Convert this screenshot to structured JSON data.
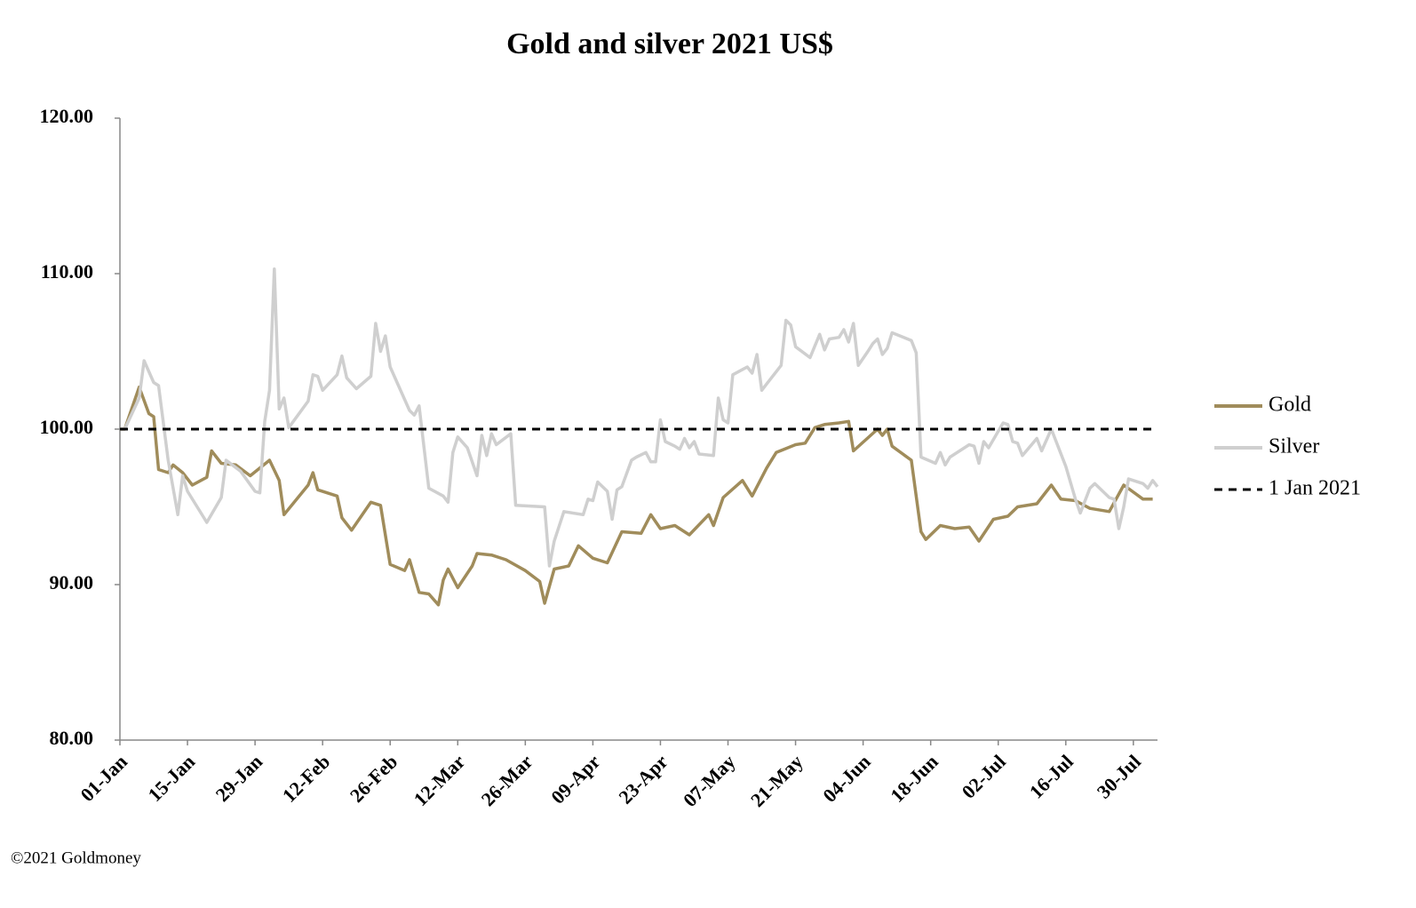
{
  "chart_data": {
    "type": "line",
    "title": "Gold and silver 2021  US$",
    "footer": "©2021 Goldmoney",
    "xlim": [
      "01-Jan",
      "04-Aug"
    ],
    "xticks": [
      "01-Jan",
      "15-Jan",
      "29-Jan",
      "12-Feb",
      "26-Feb",
      "12-Mar",
      "26-Mar",
      "09-Apr",
      "23-Apr",
      "07-May",
      "21-May",
      "04-Jun",
      "18-Jun",
      "02-Jul",
      "16-Jul",
      "30-Jul"
    ],
    "ylim": [
      80,
      120
    ],
    "yticks": [
      {
        "value": 80,
        "label": "80.00"
      },
      {
        "value": 90,
        "label": "90.00"
      },
      {
        "value": 100,
        "label": "100.00"
      },
      {
        "value": 110,
        "label": "110.00"
      },
      {
        "value": 120,
        "label": "120.00"
      }
    ],
    "series": [
      {
        "name": "Gold",
        "color": "#a08c5b",
        "x": [
          "01-Jan",
          "02-Jan",
          "05-Jan",
          "07-Jan",
          "08-Jan",
          "09-Jan",
          "11-Jan",
          "12-Jan",
          "14-Jan",
          "16-Jan",
          "19-Jan",
          "20-Jan",
          "22-Jan",
          "25-Jan",
          "28-Jan",
          "01-Feb",
          "03-Feb",
          "04-Feb",
          "09-Feb",
          "10-Feb",
          "11-Feb",
          "15-Feb",
          "16-Feb",
          "18-Feb",
          "22-Feb",
          "24-Feb",
          "26-Feb",
          "01-Mar",
          "02-Mar",
          "04-Mar",
          "06-Mar",
          "08-Mar",
          "09-Mar",
          "10-Mar",
          "12-Mar",
          "15-Mar",
          "16-Mar",
          "19-Mar",
          "22-Mar",
          "26-Mar",
          "29-Mar",
          "30-Mar",
          "01-Apr",
          "04-Apr",
          "06-Apr",
          "09-Apr",
          "12-Apr",
          "15-Apr",
          "19-Apr",
          "21-Apr",
          "23-Apr",
          "26-Apr",
          "29-Apr",
          "03-May",
          "04-May",
          "06-May",
          "10-May",
          "12-May",
          "15-May",
          "17-May",
          "21-May",
          "23-May",
          "25-May",
          "27-May",
          "30-May",
          "01-Jun",
          "02-Jun",
          "07-Jun",
          "08-Jun",
          "09-Jun",
          "10-Jun",
          "14-Jun",
          "16-Jun",
          "17-Jun",
          "20-Jun",
          "23-Jun",
          "26-Jun",
          "28-Jun",
          "01-Jul",
          "04-Jul",
          "06-Jul",
          "10-Jul",
          "13-Jul",
          "15-Jul",
          "18-Jul",
          "21-Jul",
          "25-Jul",
          "28-Jul",
          "01-Aug",
          "03-Aug"
        ],
        "values": [
          100,
          100.0,
          102.7,
          101,
          100.8,
          97.4,
          97.2,
          97.7,
          97.2,
          96.4,
          96.9,
          98.6,
          97.8,
          97.7,
          97.0,
          98.0,
          96.7,
          94.5,
          96.4,
          97.2,
          96.1,
          95.7,
          94.3,
          93.5,
          95.3,
          95.1,
          91.3,
          90.9,
          91.6,
          89.5,
          89.4,
          88.7,
          90.3,
          91.0,
          89.8,
          91.2,
          92.0,
          91.9,
          91.6,
          90.9,
          90.2,
          88.8,
          91.0,
          91.2,
          92.5,
          91.7,
          91.4,
          93.4,
          93.3,
          94.5,
          93.6,
          93.8,
          93.2,
          94.5,
          93.8,
          95.6,
          96.7,
          95.7,
          97.5,
          98.5,
          99.0,
          99.1,
          100.1,
          100.3,
          100.4,
          100.5,
          98.6,
          100.0,
          99.6,
          100.0,
          98.9,
          98.0,
          93.4,
          92.9,
          93.8,
          93.6,
          93.7,
          92.8,
          94.2,
          94.4,
          95.0,
          95.2,
          96.4,
          95.5,
          95.4,
          94.9,
          94.7,
          96.4,
          95.5,
          95.5
        ]
      },
      {
        "name": "Silver",
        "color": "#cfcfcf",
        "x": [
          "01-Jan",
          "02-Jan",
          "05-Jan",
          "06-Jan",
          "08-Jan",
          "09-Jan",
          "11-Jan",
          "13-Jan",
          "14-Jan",
          "15-Jan",
          "19-Jan",
          "22-Jan",
          "23-Jan",
          "26-Jan",
          "29-Jan",
          "30-Jan",
          "31-Jan",
          "01-Feb",
          "02-Feb",
          "03-Feb",
          "04-Feb",
          "05-Feb",
          "09-Feb",
          "10-Feb",
          "11-Feb",
          "12-Feb",
          "15-Feb",
          "16-Feb",
          "17-Feb",
          "19-Feb",
          "22-Feb",
          "23-Feb",
          "24-Feb",
          "25-Feb",
          "26-Feb",
          "02-Mar",
          "03-Mar",
          "04-Mar",
          "06-Mar",
          "09-Mar",
          "10-Mar",
          "11-Mar",
          "12-Mar",
          "14-Mar",
          "16-Mar",
          "17-Mar",
          "18-Mar",
          "19-Mar",
          "20-Mar",
          "23-Mar",
          "24-Mar",
          "30-Mar",
          "31-Mar",
          "01-Apr",
          "03-Apr",
          "07-Apr",
          "08-Apr",
          "09-Apr",
          "10-Apr",
          "12-Apr",
          "13-Apr",
          "14-Apr",
          "15-Apr",
          "17-Apr",
          "18-Apr",
          "20-Apr",
          "21-Apr",
          "22-Apr",
          "23-Apr",
          "24-Apr",
          "26-Apr",
          "27-Apr",
          "28-Apr",
          "29-Apr",
          "30-Apr",
          "01-May",
          "04-May",
          "05-May",
          "06-May",
          "07-May",
          "08-May",
          "11-May",
          "12-May",
          "13-May",
          "14-May",
          "15-May",
          "18-May",
          "19-May",
          "20-May",
          "21-May",
          "24-May",
          "26-May",
          "27-May",
          "28-May",
          "30-May",
          "31-May",
          "01-Jun",
          "02-Jun",
          "03-Jun",
          "05-Jun",
          "06-Jun",
          "07-Jun",
          "08-Jun",
          "09-Jun",
          "10-Jun",
          "14-Jun",
          "15-Jun",
          "16-Jun",
          "19-Jun",
          "20-Jun",
          "21-Jun",
          "22-Jun",
          "26-Jun",
          "27-Jun",
          "28-Jun",
          "29-Jun",
          "30-Jun",
          "03-Jul",
          "04-Jul",
          "05-Jul",
          "06-Jul",
          "07-Jul",
          "10-Jul",
          "11-Jul",
          "13-Jul",
          "16-Jul",
          "18-Jul",
          "19-Jul",
          "21-Jul",
          "22-Jul",
          "25-Jul",
          "26-Jul",
          "27-Jul",
          "28-Jul",
          "29-Jul",
          "01-Aug",
          "02-Aug",
          "03-Aug",
          "04-Aug"
        ],
        "values": [
          100,
          100.0,
          102,
          104.4,
          103,
          102.8,
          98,
          94.5,
          97,
          96,
          94,
          95.6,
          98,
          97.3,
          96,
          95.9,
          100.5,
          102.5,
          110.3,
          101.3,
          102,
          100.1,
          101.8,
          103.5,
          103.4,
          102.5,
          103.5,
          104.7,
          103.3,
          102.6,
          103.4,
          106.8,
          105,
          106,
          104,
          101.2,
          100.9,
          101.5,
          96.2,
          95.7,
          95.3,
          98.5,
          99.5,
          98.8,
          97,
          99.6,
          98.3,
          99.7,
          99,
          99.7,
          95.1,
          95,
          91.2,
          92.8,
          94.7,
          94.5,
          95.5,
          95.4,
          96.6,
          96,
          94.2,
          96.1,
          96.3,
          98,
          98.2,
          98.5,
          97.9,
          97.9,
          100.6,
          99.2,
          98.9,
          98.7,
          99.4,
          98.8,
          99.2,
          98.4,
          98.3,
          102,
          100.6,
          100.4,
          103.5,
          104,
          103.6,
          104.8,
          102.5,
          102.9,
          104.1,
          107,
          106.7,
          105.3,
          104.6,
          106.1,
          105.1,
          105.8,
          105.9,
          106.4,
          105.6,
          106.8,
          104.1,
          105,
          105.5,
          105.8,
          104.8,
          105.2,
          106.2,
          105.7,
          104.9,
          98.2,
          97.8,
          98.5,
          97.7,
          98.2,
          99,
          98.9,
          97.8,
          99.2,
          98.8,
          100.4,
          100.3,
          99.2,
          99.1,
          98.3,
          99.4,
          98.6,
          100,
          97.6,
          95.5,
          94.6,
          96.2,
          96.5,
          95.6,
          95.5,
          93.6,
          95,
          96.8,
          96.5,
          96.2,
          96.7,
          96.3
        ]
      },
      {
        "name": "1 Jan 2021",
        "color": "#000000",
        "dashed": true,
        "x": [
          "01-Jan",
          "04-Aug"
        ],
        "values": [
          100,
          100
        ]
      }
    ]
  }
}
